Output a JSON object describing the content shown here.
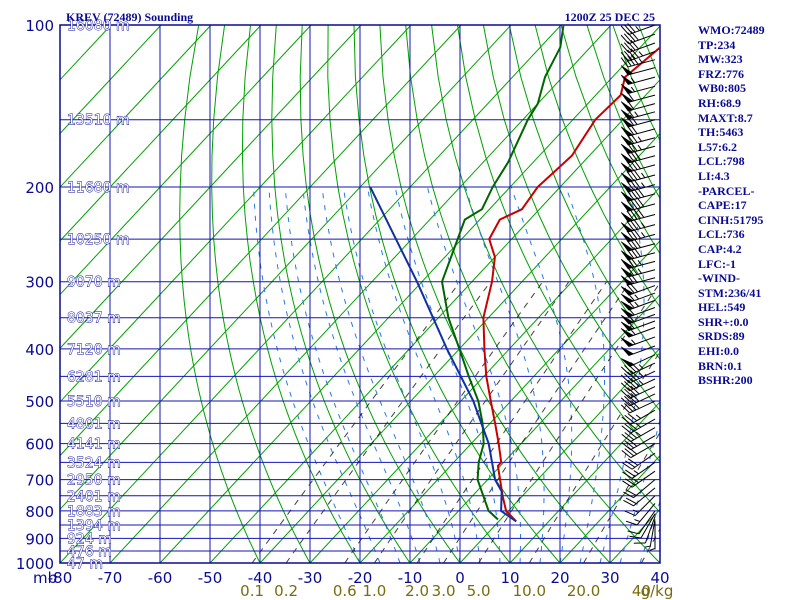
{
  "chart_data": {
    "type": "skew-t log-p sounding",
    "title": "KREV (72489) Sounding",
    "timestamp": "1200Z 25 DEC 25",
    "pressure_axis": {
      "unit_label": "mb",
      "ticks": [
        "100",
        "200",
        "300",
        "400",
        "500",
        "600",
        "700",
        "800",
        "900",
        "1000"
      ],
      "range": [
        100,
        1000
      ],
      "scale": "log"
    },
    "temperature_axis": {
      "unit_label": "C",
      "ticks": [
        "-80",
        "-70",
        "-60",
        "-50",
        "-40",
        "-30",
        "-20",
        "-10",
        "0",
        "10",
        "20",
        "30",
        "40"
      ],
      "range": [
        -80,
        40
      ]
    },
    "height_labels": [
      {
        "p": 100,
        "text": "16080 m"
      },
      {
        "p": 150,
        "text": "13510 m"
      },
      {
        "p": 200,
        "text": "11680 m"
      },
      {
        "p": 250,
        "text": "10250 m"
      },
      {
        "p": 300,
        "text": "9070 m"
      },
      {
        "p": 350,
        "text": "8037 m"
      },
      {
        "p": 400,
        "text": "7120 m"
      },
      {
        "p": 450,
        "text": "6281 m"
      },
      {
        "p": 500,
        "text": "5510 m"
      },
      {
        "p": 550,
        "text": "4801 m"
      },
      {
        "p": 600,
        "text": "4141 m"
      },
      {
        "p": 650,
        "text": "3524 m"
      },
      {
        "p": 700,
        "text": "2950 m"
      },
      {
        "p": 750,
        "text": "2401 m"
      },
      {
        "p": 800,
        "text": "1883 m"
      },
      {
        "p": 850,
        "text": "1394 m"
      },
      {
        "p": 900,
        "text": "924 m"
      },
      {
        "p": 950,
        "text": "476 m"
      },
      {
        "p": 1000,
        "text": "47 m"
      }
    ],
    "mixing_ratio_labels": [
      "0.1",
      "0.2",
      "0.6",
      "1.0",
      "2.0",
      "3.0",
      "5.0",
      "10.0",
      "20.0",
      "40"
    ],
    "mixing_ratio_unit": "g/kg",
    "series": [
      {
        "key": "temperature",
        "color": "#c80000",
        "points": [
          {
            "p": 837,
            "t": 3.5
          },
          {
            "p": 800,
            "t": -0.5
          },
          {
            "p": 750,
            "t": -4.0
          },
          {
            "p": 700,
            "t": -7.5
          },
          {
            "p": 660,
            "t": -10.5
          },
          {
            "p": 650,
            "t": -10.5
          },
          {
            "p": 600,
            "t": -14.5
          },
          {
            "p": 550,
            "t": -19.0
          },
          {
            "p": 500,
            "t": -24.0
          },
          {
            "p": 450,
            "t": -29.5
          },
          {
            "p": 400,
            "t": -35.0
          },
          {
            "p": 350,
            "t": -41.0
          },
          {
            "p": 300,
            "t": -46.0
          },
          {
            "p": 270,
            "t": -50.0
          },
          {
            "p": 250,
            "t": -54.5
          },
          {
            "p": 230,
            "t": -56.0
          },
          {
            "p": 220,
            "t": -53.5
          },
          {
            "p": 200,
            "t": -54.5
          },
          {
            "p": 175,
            "t": -53.5
          },
          {
            "p": 150,
            "t": -55.5
          },
          {
            "p": 135,
            "t": -55.0
          },
          {
            "p": 125,
            "t": -57.5
          },
          {
            "p": 110,
            "t": -56.0
          },
          {
            "p": 100,
            "t": -59.5
          }
        ]
      },
      {
        "key": "dewpoint",
        "color": "#006400",
        "points": [
          {
            "p": 830,
            "t": -0.5
          },
          {
            "p": 800,
            "t": -4.0
          },
          {
            "p": 700,
            "t": -12.0
          },
          {
            "p": 650,
            "t": -15.0
          },
          {
            "p": 600,
            "t": -17.5
          },
          {
            "p": 550,
            "t": -21.5
          },
          {
            "p": 500,
            "t": -26.5
          },
          {
            "p": 450,
            "t": -33.0
          },
          {
            "p": 400,
            "t": -40.0
          },
          {
            "p": 350,
            "t": -48.0
          },
          {
            "p": 300,
            "t": -56.0
          },
          {
            "p": 230,
            "t": -63.0
          },
          {
            "p": 220,
            "t": -61.5
          },
          {
            "p": 200,
            "t": -63.5
          },
          {
            "p": 180,
            "t": -65.0
          },
          {
            "p": 150,
            "t": -69.0
          },
          {
            "p": 140,
            "t": -70.0
          },
          {
            "p": 125,
            "t": -73.5
          },
          {
            "p": 110,
            "t": -76.0
          },
          {
            "p": 100,
            "t": -79.5
          }
        ]
      },
      {
        "key": "parcel",
        "color": "#1030a0",
        "points": [
          {
            "p": 837,
            "t": 3.5
          },
          {
            "p": 800,
            "t": -1.5
          },
          {
            "p": 736,
            "t": -5.0
          },
          {
            "p": 700,
            "t": -8.5
          },
          {
            "p": 600,
            "t": -16.5
          },
          {
            "p": 500,
            "t": -27.5
          },
          {
            "p": 400,
            "t": -42.5
          },
          {
            "p": 300,
            "t": -61.0
          },
          {
            "p": 200,
            "t": -88.0
          }
        ]
      }
    ],
    "wind_barbs": [
      {
        "p": 100,
        "dir": 250,
        "spd": 35
      },
      {
        "p": 104,
        "dir": 250,
        "spd": 40
      },
      {
        "p": 108,
        "dir": 250,
        "spd": 40
      },
      {
        "p": 112,
        "dir": 250,
        "spd": 45
      },
      {
        "p": 116,
        "dir": 255,
        "spd": 45
      },
      {
        "p": 120,
        "dir": 255,
        "spd": 50
      },
      {
        "p": 125,
        "dir": 255,
        "spd": 55
      },
      {
        "p": 130,
        "dir": 255,
        "spd": 55
      },
      {
        "p": 135,
        "dir": 255,
        "spd": 60
      },
      {
        "p": 140,
        "dir": 255,
        "spd": 60
      },
      {
        "p": 145,
        "dir": 255,
        "spd": 65
      },
      {
        "p": 150,
        "dir": 255,
        "spd": 70
      },
      {
        "p": 156,
        "dir": 255,
        "spd": 70
      },
      {
        "p": 162,
        "dir": 255,
        "spd": 75
      },
      {
        "p": 168,
        "dir": 255,
        "spd": 75
      },
      {
        "p": 175,
        "dir": 255,
        "spd": 80
      },
      {
        "p": 182,
        "dir": 255,
        "spd": 80
      },
      {
        "p": 190,
        "dir": 255,
        "spd": 85
      },
      {
        "p": 198,
        "dir": 255,
        "spd": 85
      },
      {
        "p": 206,
        "dir": 255,
        "spd": 90
      },
      {
        "p": 215,
        "dir": 255,
        "spd": 90
      },
      {
        "p": 225,
        "dir": 255,
        "spd": 90
      },
      {
        "p": 235,
        "dir": 255,
        "spd": 85
      },
      {
        "p": 245,
        "dir": 255,
        "spd": 85
      },
      {
        "p": 255,
        "dir": 255,
        "spd": 80
      },
      {
        "p": 265,
        "dir": 255,
        "spd": 80
      },
      {
        "p": 275,
        "dir": 255,
        "spd": 75
      },
      {
        "p": 285,
        "dir": 255,
        "spd": 75
      },
      {
        "p": 295,
        "dir": 255,
        "spd": 70
      },
      {
        "p": 305,
        "dir": 250,
        "spd": 70
      },
      {
        "p": 315,
        "dir": 250,
        "spd": 65
      },
      {
        "p": 325,
        "dir": 250,
        "spd": 65
      },
      {
        "p": 335,
        "dir": 250,
        "spd": 60
      },
      {
        "p": 345,
        "dir": 250,
        "spd": 60
      },
      {
        "p": 355,
        "dir": 250,
        "spd": 60
      },
      {
        "p": 365,
        "dir": 250,
        "spd": 55
      },
      {
        "p": 380,
        "dir": 250,
        "spd": 55
      },
      {
        "p": 395,
        "dir": 250,
        "spd": 50
      },
      {
        "p": 410,
        "dir": 245,
        "spd": 50
      },
      {
        "p": 425,
        "dir": 245,
        "spd": 45
      },
      {
        "p": 440,
        "dir": 245,
        "spd": 45
      },
      {
        "p": 455,
        "dir": 245,
        "spd": 45
      },
      {
        "p": 470,
        "dir": 245,
        "spd": 40
      },
      {
        "p": 485,
        "dir": 245,
        "spd": 40
      },
      {
        "p": 500,
        "dir": 245,
        "spd": 40
      },
      {
        "p": 520,
        "dir": 240,
        "spd": 35
      },
      {
        "p": 540,
        "dir": 240,
        "spd": 35
      },
      {
        "p": 560,
        "dir": 240,
        "spd": 35
      },
      {
        "p": 580,
        "dir": 240,
        "spd": 30
      },
      {
        "p": 600,
        "dir": 240,
        "spd": 30
      },
      {
        "p": 625,
        "dir": 235,
        "spd": 30
      },
      {
        "p": 650,
        "dir": 235,
        "spd": 25
      },
      {
        "p": 675,
        "dir": 235,
        "spd": 25
      },
      {
        "p": 700,
        "dir": 230,
        "spd": 20
      },
      {
        "p": 725,
        "dir": 230,
        "spd": 20
      },
      {
        "p": 750,
        "dir": 225,
        "spd": 15
      },
      {
        "p": 775,
        "dir": 220,
        "spd": 15
      },
      {
        "p": 800,
        "dir": 215,
        "spd": 10
      },
      {
        "p": 810,
        "dir": 210,
        "spd": 10
      },
      {
        "p": 820,
        "dir": 200,
        "spd": 10
      },
      {
        "p": 830,
        "dir": 190,
        "spd": 5
      },
      {
        "p": 837,
        "dir": 180,
        "spd": 5
      }
    ],
    "legend": "none",
    "grid": true
  },
  "stats": [
    "WMO:72489",
    "TP:234",
    "MW:323",
    "FRZ:776",
    "WB0:805",
    "RH:68.9",
    "MAXT:8.7",
    "TH:5463",
    "L57:6.2",
    "LCL:798",
    "LI:4.3",
    "-PARCEL-",
    "CAPE:17",
    "CINH:51795",
    "LCL:736",
    "CAP:4.2",
    "LFC:-1",
    "-WIND-",
    "STM:236/41",
    "HEL:549",
    "SHR+:0.0",
    "SRDS:89",
    "EHI:0.0",
    "BRN:0.1",
    "BSHR:200"
  ],
  "colors": {
    "frame": "#0a0a96",
    "grid": "#1414b4",
    "isotherm": "#00a000",
    "dry_adiabat": "#00a000",
    "moist_adiabat": "#2878e6",
    "mixing_ratio": "#000000",
    "mixing_ratio_label": "#7a6a10",
    "tick_label": "#0a0a96",
    "height_label": "#ffffff",
    "title": "#0a0a96"
  }
}
